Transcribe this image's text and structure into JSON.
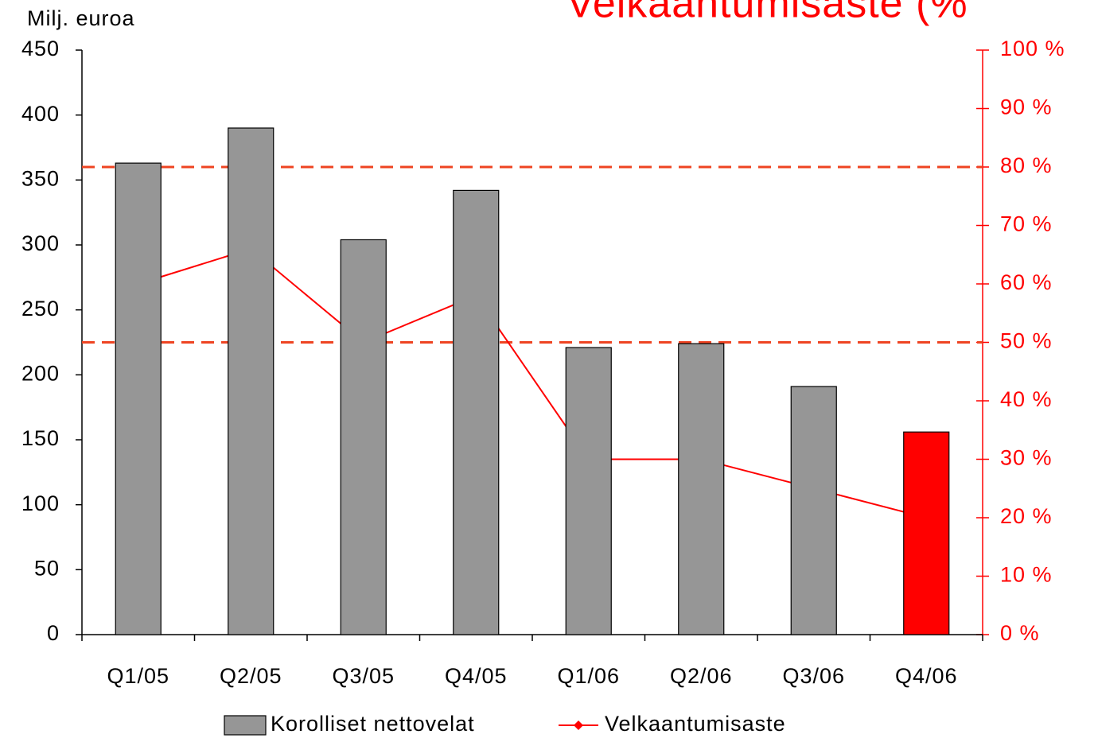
{
  "chart_data": {
    "type": "bar_line",
    "title": "Velkaantumisaste (%",
    "y_axis_label": "Milj. euroa",
    "categories": [
      "Q1/05",
      "Q2/05",
      "Q3/05",
      "Q4/05",
      "Q1/06",
      "Q2/06",
      "Q3/06",
      "Q4/06"
    ],
    "series": [
      {
        "name": "Korolliset nettovelat",
        "type": "bar",
        "color": "#969696",
        "colors": [
          "#969696",
          "#969696",
          "#969696",
          "#969696",
          "#969696",
          "#969696",
          "#969696",
          "#ff0000"
        ],
        "values": [
          363,
          390,
          304,
          342,
          221,
          224,
          191,
          156
        ]
      },
      {
        "name": "Velkaantumisaste",
        "type": "line",
        "axis": "y2",
        "color": "#ff0000",
        "values": [
          60,
          66,
          50,
          58,
          30,
          30,
          25,
          20
        ]
      }
    ],
    "ylim": [
      0,
      450
    ],
    "yticks": [
      0,
      50,
      100,
      150,
      200,
      250,
      300,
      350,
      400,
      450
    ],
    "y2lim": [
      0,
      100
    ],
    "y2ticks": [
      {
        "value": 0,
        "label": "0 %"
      },
      {
        "value": 10,
        "label": "10 %"
      },
      {
        "value": 20,
        "label": "20 %"
      },
      {
        "value": 30,
        "label": "30 %"
      },
      {
        "value": 40,
        "label": "40 %"
      },
      {
        "value": 50,
        "label": "50 %"
      },
      {
        "value": 60,
        "label": "60 %"
      },
      {
        "value": 70,
        "label": "70 %"
      },
      {
        "value": 80,
        "label": "80 %"
      },
      {
        "value": 90,
        "label": "90 %"
      },
      {
        "value": 100,
        "label": "100 %"
      }
    ],
    "y2_color": "#ff0000",
    "reference_lines": [
      {
        "axis": "y2",
        "value": 80,
        "color": "#ee4422"
      },
      {
        "axis": "y2",
        "value": 50,
        "color": "#ee4422"
      }
    ],
    "legend": "bottom"
  }
}
